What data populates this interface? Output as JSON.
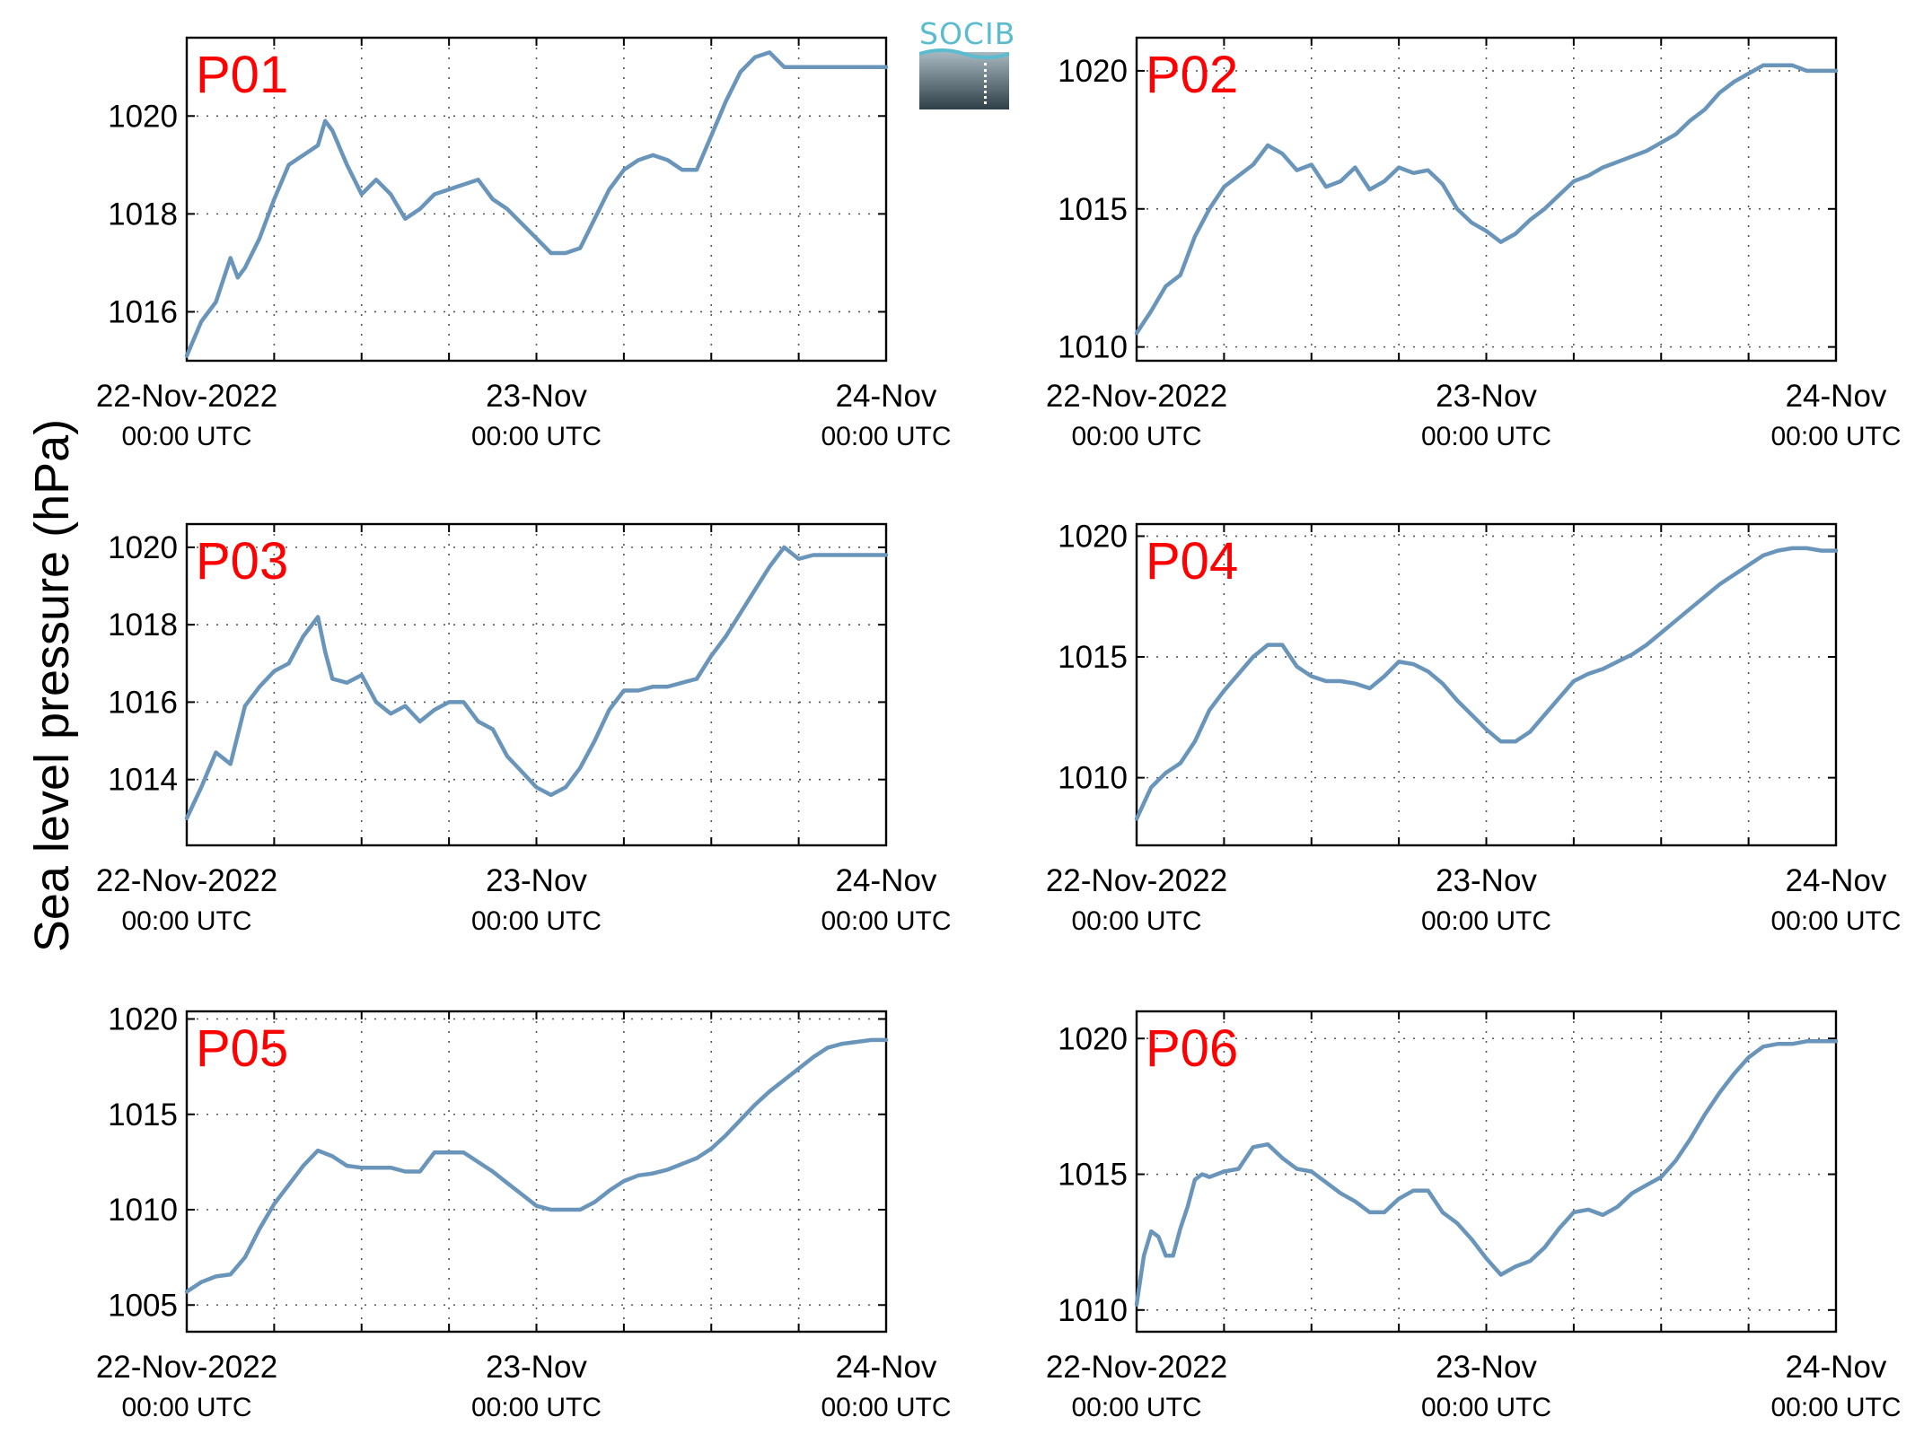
{
  "figure": {
    "ylabel": "Sea level pressure (hPa)",
    "logo_text": "SOCIB",
    "line_color": "#6a95bb",
    "label_color": "#ff0000",
    "x_ticks": [
      {
        "t": 0,
        "line1": "22-Nov-2022",
        "line2": "00:00 UTC"
      },
      {
        "t": 24,
        "line1": "23-Nov",
        "line2": "00:00 UTC"
      },
      {
        "t": 48,
        "line1": "24-Nov",
        "line2": "00:00 UTC"
      }
    ]
  },
  "chart_data": [
    {
      "type": "line",
      "title": "P01",
      "xlim": [
        0,
        48
      ],
      "ylim": [
        1015,
        1021.6
      ],
      "yticks": [
        1016,
        1018,
        1020
      ],
      "grid": true,
      "xlabel": "",
      "ylabel": "",
      "series": [
        {
          "x": [
            0,
            1,
            2,
            3,
            3.5,
            4,
            5,
            6,
            7,
            8,
            9,
            9.5,
            10,
            11,
            12,
            13,
            14,
            15,
            16,
            17,
            18,
            19,
            20,
            21,
            22,
            23,
            24,
            25,
            26,
            27,
            28,
            29,
            30,
            31,
            32,
            33,
            34,
            35,
            36,
            37,
            38,
            39,
            40,
            41,
            42,
            43,
            44,
            45,
            46,
            47,
            48
          ],
          "y": [
            1015.1,
            1015.8,
            1016.2,
            1017.1,
            1016.7,
            1016.9,
            1017.5,
            1018.3,
            1019.0,
            1019.2,
            1019.4,
            1019.9,
            1019.7,
            1019.0,
            1018.4,
            1018.7,
            1018.4,
            1017.9,
            1018.1,
            1018.4,
            1018.5,
            1018.6,
            1018.7,
            1018.3,
            1018.1,
            1017.8,
            1017.5,
            1017.2,
            1017.2,
            1017.3,
            1017.9,
            1018.5,
            1018.9,
            1019.1,
            1019.2,
            1019.1,
            1018.9,
            1018.9,
            1019.6,
            1020.3,
            1020.9,
            1021.2,
            1021.3,
            1021.0,
            1021.0,
            1021.0,
            1021.0,
            1021.0,
            1021.0,
            1021.0,
            1021.0
          ]
        }
      ]
    },
    {
      "type": "line",
      "title": "P02",
      "xlim": [
        0,
        48
      ],
      "ylim": [
        1009.5,
        1021.2
      ],
      "yticks": [
        1010,
        1015,
        1020
      ],
      "grid": true,
      "xlabel": "",
      "ylabel": "",
      "series": [
        {
          "x": [
            0,
            1,
            2,
            3,
            4,
            5,
            6,
            7,
            8,
            9,
            10,
            11,
            12,
            13,
            14,
            15,
            16,
            17,
            18,
            19,
            20,
            21,
            22,
            23,
            24,
            25,
            26,
            27,
            28,
            29,
            30,
            31,
            32,
            33,
            34,
            35,
            36,
            37,
            38,
            39,
            40,
            41,
            42,
            43,
            44,
            45,
            46,
            47,
            48
          ],
          "y": [
            1010.5,
            1011.3,
            1012.2,
            1012.6,
            1014.0,
            1015.0,
            1015.8,
            1016.2,
            1016.6,
            1017.3,
            1017.0,
            1016.4,
            1016.6,
            1015.8,
            1016.0,
            1016.5,
            1015.7,
            1016.0,
            1016.5,
            1016.3,
            1016.4,
            1015.9,
            1015.0,
            1014.5,
            1014.2,
            1013.8,
            1014.1,
            1014.6,
            1015.0,
            1015.5,
            1016.0,
            1016.2,
            1016.5,
            1016.7,
            1016.9,
            1017.1,
            1017.4,
            1017.7,
            1018.2,
            1018.6,
            1019.2,
            1019.6,
            1019.9,
            1020.2,
            1020.2,
            1020.2,
            1020.0,
            1020.0,
            1020.0
          ]
        }
      ]
    },
    {
      "type": "line",
      "title": "P03",
      "xlim": [
        0,
        48
      ],
      "ylim": [
        1012.3,
        1020.6
      ],
      "yticks": [
        1014,
        1016,
        1018,
        1020
      ],
      "grid": true,
      "xlabel": "",
      "ylabel": "",
      "series": [
        {
          "x": [
            0,
            1,
            2,
            3,
            4,
            5,
            6,
            7,
            8,
            9,
            9.5,
            10,
            11,
            12,
            13,
            14,
            15,
            16,
            17,
            18,
            19,
            20,
            21,
            22,
            23,
            24,
            25,
            26,
            27,
            28,
            29,
            30,
            31,
            32,
            33,
            34,
            35,
            36,
            37,
            38,
            39,
            40,
            41,
            42,
            43,
            44,
            45,
            46,
            47,
            48
          ],
          "y": [
            1013.0,
            1013.8,
            1014.7,
            1014.4,
            1015.9,
            1016.4,
            1016.8,
            1017.0,
            1017.7,
            1018.2,
            1017.3,
            1016.6,
            1016.5,
            1016.7,
            1016.0,
            1015.7,
            1015.9,
            1015.5,
            1015.8,
            1016.0,
            1016.0,
            1015.5,
            1015.3,
            1014.6,
            1014.2,
            1013.8,
            1013.6,
            1013.8,
            1014.3,
            1015.0,
            1015.8,
            1016.3,
            1016.3,
            1016.4,
            1016.4,
            1016.5,
            1016.6,
            1017.2,
            1017.7,
            1018.3,
            1018.9,
            1019.5,
            1020.0,
            1019.7,
            1019.8,
            1019.8,
            1019.8,
            1019.8,
            1019.8,
            1019.8
          ]
        }
      ]
    },
    {
      "type": "line",
      "title": "P04",
      "xlim": [
        0,
        48
      ],
      "ylim": [
        1007.2,
        1020.5
      ],
      "yticks": [
        1010,
        1015,
        1020
      ],
      "grid": true,
      "xlabel": "",
      "ylabel": "",
      "series": [
        {
          "x": [
            0,
            1,
            2,
            3,
            4,
            5,
            6,
            7,
            8,
            9,
            10,
            11,
            12,
            13,
            14,
            15,
            16,
            17,
            18,
            19,
            20,
            21,
            22,
            23,
            24,
            25,
            26,
            27,
            28,
            29,
            30,
            31,
            32,
            33,
            34,
            35,
            36,
            37,
            38,
            39,
            40,
            41,
            42,
            43,
            44,
            45,
            46,
            47,
            48
          ],
          "y": [
            1008.3,
            1009.6,
            1010.2,
            1010.6,
            1011.5,
            1012.8,
            1013.6,
            1014.3,
            1015.0,
            1015.5,
            1015.5,
            1014.6,
            1014.2,
            1014.0,
            1014.0,
            1013.9,
            1013.7,
            1014.2,
            1014.8,
            1014.7,
            1014.4,
            1013.9,
            1013.2,
            1012.6,
            1012.0,
            1011.5,
            1011.5,
            1011.9,
            1012.6,
            1013.3,
            1014.0,
            1014.3,
            1014.5,
            1014.8,
            1015.1,
            1015.5,
            1016.0,
            1016.5,
            1017.0,
            1017.5,
            1018.0,
            1018.4,
            1018.8,
            1019.2,
            1019.4,
            1019.5,
            1019.5,
            1019.4,
            1019.4
          ]
        }
      ]
    },
    {
      "type": "line",
      "title": "P05",
      "xlim": [
        0,
        48
      ],
      "ylim": [
        1003.6,
        1020.4
      ],
      "yticks": [
        1005,
        1010,
        1015,
        1020
      ],
      "grid": true,
      "xlabel": "",
      "ylabel": "",
      "series": [
        {
          "x": [
            0,
            1,
            2,
            3,
            4,
            5,
            6,
            7,
            8,
            9,
            10,
            11,
            12,
            13,
            14,
            15,
            16,
            17,
            18,
            19,
            20,
            21,
            22,
            23,
            24,
            25,
            26,
            27,
            28,
            29,
            30,
            31,
            32,
            33,
            34,
            35,
            36,
            37,
            38,
            39,
            40,
            41,
            42,
            43,
            44,
            45,
            46,
            47,
            48
          ],
          "y": [
            1005.7,
            1006.2,
            1006.5,
            1006.6,
            1007.5,
            1009.0,
            1010.3,
            1011.3,
            1012.3,
            1013.1,
            1012.8,
            1012.3,
            1012.2,
            1012.2,
            1012.2,
            1012.0,
            1012.0,
            1013.0,
            1013.0,
            1013.0,
            1012.5,
            1012.0,
            1011.4,
            1010.8,
            1010.2,
            1010.0,
            1010.0,
            1010.0,
            1010.4,
            1011.0,
            1011.5,
            1011.8,
            1011.9,
            1012.1,
            1012.4,
            1012.7,
            1013.2,
            1013.9,
            1014.7,
            1015.5,
            1016.2,
            1016.8,
            1017.4,
            1018.0,
            1018.5,
            1018.7,
            1018.8,
            1018.9,
            1018.9
          ]
        }
      ]
    },
    {
      "type": "line",
      "title": "P06",
      "xlim": [
        0,
        48
      ],
      "ylim": [
        1009.2,
        1021.0
      ],
      "yticks": [
        1010,
        1015,
        1020
      ],
      "grid": true,
      "xlabel": "",
      "ylabel": "",
      "series": [
        {
          "x": [
            0,
            0.5,
            1,
            1.5,
            2,
            2.5,
            3,
            3.5,
            4,
            4.5,
            5,
            6,
            7,
            8,
            9,
            10,
            11,
            12,
            13,
            14,
            15,
            16,
            17,
            18,
            19,
            20,
            21,
            22,
            23,
            24,
            25,
            26,
            27,
            28,
            29,
            30,
            31,
            32,
            33,
            34,
            35,
            36,
            37,
            38,
            39,
            40,
            41,
            42,
            43,
            44,
            45,
            46,
            47,
            48
          ],
          "y": [
            1010.2,
            1012.0,
            1012.9,
            1012.7,
            1012.0,
            1012.0,
            1013.0,
            1013.8,
            1014.8,
            1015.0,
            1014.9,
            1015.1,
            1015.2,
            1016.0,
            1016.1,
            1015.6,
            1015.2,
            1015.1,
            1014.7,
            1014.3,
            1014.0,
            1013.6,
            1013.6,
            1014.1,
            1014.4,
            1014.4,
            1013.6,
            1013.2,
            1012.6,
            1011.9,
            1011.3,
            1011.6,
            1011.8,
            1012.3,
            1013.0,
            1013.6,
            1013.7,
            1013.5,
            1013.8,
            1014.3,
            1014.6,
            1014.9,
            1015.5,
            1016.3,
            1017.2,
            1018.0,
            1018.7,
            1019.3,
            1019.7,
            1019.8,
            1019.8,
            1019.9,
            1019.9,
            1019.9
          ]
        }
      ]
    }
  ]
}
